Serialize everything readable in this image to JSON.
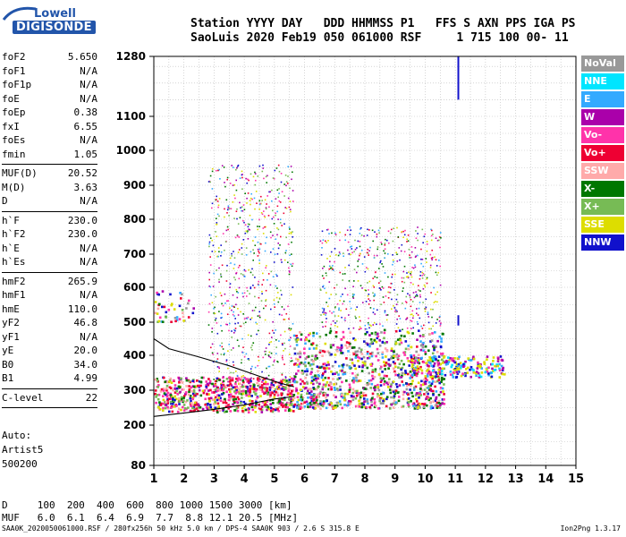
{
  "logo": {
    "top": "Lowell",
    "bottom": "DIGISONDE"
  },
  "header": {
    "line1": "Station YYYY DAY   DDD HHMMSS P1   FFS S AXN PPS IGA PS",
    "line2": "SaoLuis 2020 Feb19 050 061000 RSF     1 715 100 00- 11"
  },
  "params": [
    {
      "k": "foF2",
      "v": "5.650"
    },
    {
      "k": "foF1",
      "v": "N/A"
    },
    {
      "k": "foF1p",
      "v": "N/A"
    },
    {
      "k": "foE",
      "v": "N/A"
    },
    {
      "k": "foEp",
      "v": "0.38"
    },
    {
      "k": "fxI",
      "v": "6.55"
    },
    {
      "k": "foEs",
      "v": "N/A"
    },
    {
      "k": "fmin",
      "v": "1.05"
    },
    {
      "sep": true
    },
    {
      "k": "MUF(D)",
      "v": "20.52"
    },
    {
      "k": "M(D)",
      "v": "3.63"
    },
    {
      "k": "D",
      "v": "N/A"
    },
    {
      "sep": true
    },
    {
      "k": "h`F",
      "v": "230.0"
    },
    {
      "k": "h`F2",
      "v": "230.0"
    },
    {
      "k": "h`E",
      "v": "N/A"
    },
    {
      "k": "h`Es",
      "v": "N/A"
    },
    {
      "sep": true
    },
    {
      "k": "hmF2",
      "v": "265.9"
    },
    {
      "k": "hmF1",
      "v": "N/A"
    },
    {
      "k": "hmE",
      "v": "110.0"
    },
    {
      "k": "yF2",
      "v": "46.8"
    },
    {
      "k": "yF1",
      "v": "N/A"
    },
    {
      "k": "yE",
      "v": "20.0"
    },
    {
      "k": "B0",
      "v": "34.0"
    },
    {
      "k": "B1",
      "v": "4.99"
    },
    {
      "sep": true
    },
    {
      "k": "C-level",
      "v": "22"
    },
    {
      "sep": true
    }
  ],
  "auto": {
    "l1": "Auto:",
    "l2": "Artist5",
    "l3": "500200"
  },
  "muf_table": {
    "d_row": "D     100  200  400  600  800 1000 1500 3000 [km]",
    "muf_row": "MUF   6.0  6.1  6.4  6.9  7.7  8.8 12.1 20.5 [MHz]"
  },
  "footer": "SAA0K_2020050061000.RSF / 280fx256h 50 kHz 5.0 km / DPS-4 SAA0K 903 / 2.6 S 315.8 E",
  "version": "Ion2Png 1.3.17",
  "legend": [
    {
      "label": "NoVal",
      "color": "#999999"
    },
    {
      "label": "NNE",
      "color": "#00e5ff"
    },
    {
      "label": "E",
      "color": "#33aaff"
    },
    {
      "label": "W",
      "color": "#aa00aa"
    },
    {
      "label": "Vo-",
      "color": "#ff33aa"
    },
    {
      "label": "Vo+",
      "color": "#ee0033"
    },
    {
      "label": "SSW",
      "color": "#ffaaaa"
    },
    {
      "label": "X-",
      "color": "#007700"
    },
    {
      "label": "X+",
      "color": "#77bb55"
    },
    {
      "label": "SSE",
      "color": "#dddd00"
    },
    {
      "label": "NNW",
      "color": "#1111cc"
    }
  ],
  "chart_data": {
    "type": "scatter",
    "xlim": [
      1,
      15
    ],
    "xticks": [
      1,
      2,
      3,
      4,
      5,
      6,
      7,
      8,
      9,
      10,
      11,
      12,
      13,
      14,
      15
    ],
    "yticks": [
      80,
      200,
      300,
      400,
      500,
      600,
      700,
      800,
      900,
      1000,
      1100,
      1280
    ],
    "y_scale": "nonlinear (ionogram virtual height)",
    "grid": true,
    "legend_position": "right",
    "regions": [
      {
        "fmin": 1.0,
        "fmax": 5.65,
        "hmin": 240,
        "hmax": 340,
        "density": 1.0,
        "mix": "low"
      },
      {
        "fmin": 5.6,
        "fmax": 10.6,
        "hmin": 250,
        "hmax": 480,
        "density": 1.0,
        "mix": "mid"
      },
      {
        "fmin": 9.5,
        "fmax": 12.6,
        "hmin": 340,
        "hmax": 400,
        "density": 0.8,
        "mix": "high"
      },
      {
        "fmin": 2.8,
        "fmax": 5.6,
        "hmin": 300,
        "hmax": 960,
        "density": 0.25,
        "mix": "sparse"
      },
      {
        "fmin": 6.5,
        "fmax": 10.5,
        "hmin": 480,
        "hmax": 780,
        "density": 0.3,
        "mix": "sparse"
      },
      {
        "fmin": 1.0,
        "fmax": 2.3,
        "hmin": 500,
        "hmax": 600,
        "density": 0.4,
        "mix": "mid"
      }
    ],
    "trace_lower": [
      [
        1.0,
        225
      ],
      [
        2.0,
        235
      ],
      [
        3.0,
        245
      ],
      [
        4.0,
        258
      ],
      [
        5.0,
        275
      ],
      [
        5.65,
        282
      ]
    ],
    "trace_upper": [
      [
        1.0,
        450
      ],
      [
        1.5,
        420
      ],
      [
        2.5,
        395
      ],
      [
        3.5,
        370
      ],
      [
        4.5,
        340
      ],
      [
        5.2,
        320
      ],
      [
        5.65,
        310
      ]
    ],
    "marker_bar": {
      "f": 11.1,
      "h_from": 1150,
      "h_to": 1280,
      "color": "#1111cc"
    },
    "marker_bar2": {
      "f": 11.1,
      "h_from": 490,
      "h_to": 520,
      "color": "#1111cc"
    }
  }
}
